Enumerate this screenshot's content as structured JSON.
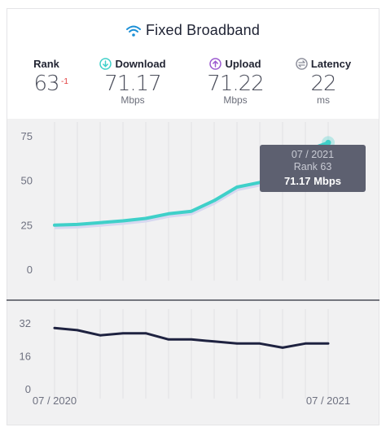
{
  "title": "Fixed Broadband",
  "stats": {
    "rank": {
      "label": "Rank",
      "value": "63",
      "delta": "-1"
    },
    "download": {
      "label": "Download",
      "value": "71.17",
      "unit": "Mbps",
      "icon": "download-icon",
      "color": "#3fd0c9"
    },
    "upload": {
      "label": "Upload",
      "value": "71.22",
      "unit": "Mbps",
      "icon": "upload-icon",
      "color": "#9b59d0"
    },
    "latency": {
      "label": "Latency",
      "value": "22",
      "unit": "ms",
      "icon": "latency-icon",
      "color": "#8e909c"
    }
  },
  "tooltip": {
    "date": "07 / 2021",
    "rank": "Rank 63",
    "value": "71.17 Mbps"
  },
  "chart_data": [
    {
      "type": "line",
      "x": [
        "07 / 2020",
        "08 / 2020",
        "09 / 2020",
        "10 / 2020",
        "11 / 2020",
        "12 / 2020",
        "01 / 2021",
        "02 / 2021",
        "03 / 2021",
        "04 / 2021",
        "05 / 2021",
        "06 / 2021",
        "07 / 2021"
      ],
      "series": [
        {
          "color": "#3fd0c9",
          "values": [
            24.8,
            25.2,
            26.2,
            27.2,
            28.6,
            31.2,
            32.6,
            38.6,
            46.2,
            48.8,
            55.2,
            66.6,
            71.17
          ]
        }
      ],
      "ylim": [
        0,
        75
      ],
      "yticks": [
        "75",
        "50",
        "25",
        "0"
      ],
      "grid": true
    },
    {
      "type": "line",
      "x": [
        "07 / 2020",
        "08 / 2020",
        "09 / 2020",
        "10 / 2020",
        "11 / 2020",
        "12 / 2020",
        "01 / 2021",
        "02 / 2021",
        "03 / 2021",
        "04 / 2021",
        "05 / 2021",
        "06 / 2021",
        "07 / 2021"
      ],
      "series": [
        {
          "color": "#1e2240",
          "values": [
            29.5,
            28.5,
            26,
            27,
            27,
            24,
            24,
            23,
            22,
            22,
            20,
            22,
            22
          ]
        }
      ],
      "ylim": [
        0,
        32
      ],
      "yticks": [
        "32",
        "16",
        "0"
      ],
      "xtick_labels": [
        "07 / 2020",
        "07 / 2021"
      ],
      "grid": true
    }
  ]
}
